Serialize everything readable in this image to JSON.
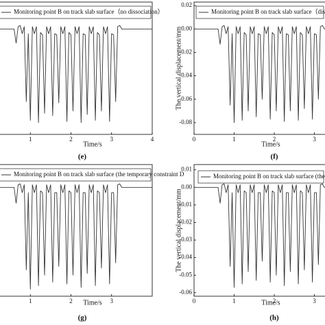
{
  "chart_data": [
    {
      "type": "line",
      "panel_label": "(e)",
      "x_label": "Time/s",
      "xlim": [
        0,
        4
      ],
      "xticks": [
        1,
        2,
        3,
        4
      ],
      "ylim": [
        -0.09,
        0.023
      ],
      "x": [
        0,
        0.05,
        0.1,
        0.15,
        0.2,
        0.25,
        0.3,
        0.35,
        0.4,
        0.45,
        0.5,
        0.55,
        0.6,
        0.65,
        0.7,
        0.75,
        0.8,
        0.85,
        0.9,
        0.95,
        1,
        1.05,
        1.1,
        1.15,
        1.2,
        1.25,
        1.3,
        1.35,
        1.4,
        1.45,
        1.5,
        1.55,
        1.6,
        1.65,
        1.7,
        1.75,
        1.8,
        1.85,
        1.9,
        1.95,
        2,
        2.05,
        2.1,
        2.15,
        2.2,
        2.25,
        2.3,
        2.35,
        2.4,
        2.45,
        2.5,
        2.55,
        2.6,
        2.65,
        2.7,
        2.75,
        2.8,
        2.85,
        2.9,
        2.95,
        3,
        3.05,
        3.1,
        3.15,
        3.2,
        3.25,
        3.3,
        3.35,
        3.4,
        3.45,
        3.5,
        3.55,
        3.6,
        3.65,
        3.7,
        3.75,
        3.8,
        3.85,
        3.9,
        3.95,
        4
      ],
      "series": [
        {
          "name": "Monitoring point B on track slab surface（no dissociation）",
          "color": "#333333",
          "values": [
            0,
            0,
            0,
            0,
            0,
            0,
            0,
            0,
            0,
            0,
            0,
            0,
            0,
            -0.012,
            0.002,
            0.003,
            -0.004,
            0.002,
            -0.062,
            -0.004,
            -0.078,
            0.002,
            -0.004,
            0.002,
            -0.08,
            -0.003,
            -0.005,
            -0.072,
            0.002,
            -0.004,
            0.002,
            -0.074,
            -0.004,
            -0.005,
            -0.063,
            0.002,
            -0.004,
            0.002,
            -0.079,
            -0.003,
            -0.005,
            -0.07,
            0.002,
            -0.004,
            0.002,
            -0.08,
            -0.004,
            -0.005,
            -0.073,
            0.002,
            -0.004,
            0.002,
            -0.078,
            -0.003,
            -0.005,
            -0.07,
            0.002,
            -0.004,
            0.002,
            -0.079,
            -0.004,
            -0.005,
            -0.062,
            0.002,
            0.003,
            0,
            0,
            0,
            0,
            0,
            0,
            0,
            0,
            0,
            0,
            0,
            0,
            0,
            0,
            0,
            0
          ]
        }
      ]
    },
    {
      "type": "line",
      "panel_label": "(f)",
      "x_label": "Time/s",
      "y_label": "The vertical displacement/mm",
      "xlim": [
        0,
        4
      ],
      "xticks": [
        0,
        1,
        2,
        3
      ],
      "ylim": [
        -0.09,
        0.023
      ],
      "yticks": [
        0.02,
        {
          "value": 0,
          "label": "0.00"
        },
        -0.02,
        -0.04,
        -0.06,
        -0.08
      ],
      "x": [
        0,
        0.05,
        0.1,
        0.15,
        0.2,
        0.25,
        0.3,
        0.35,
        0.4,
        0.45,
        0.5,
        0.55,
        0.6,
        0.65,
        0.7,
        0.75,
        0.8,
        0.85,
        0.9,
        0.95,
        1,
        1.05,
        1.1,
        1.15,
        1.2,
        1.25,
        1.3,
        1.35,
        1.4,
        1.45,
        1.5,
        1.55,
        1.6,
        1.65,
        1.7,
        1.75,
        1.8,
        1.85,
        1.9,
        1.95,
        2,
        2.05,
        2.1,
        2.15,
        2.2,
        2.25,
        2.3,
        2.35,
        2.4,
        2.45,
        2.5,
        2.55,
        2.6,
        2.65,
        2.7,
        2.75,
        2.8,
        2.85,
        2.9,
        2.95,
        3,
        3.05,
        3.1,
        3.15,
        3.2,
        3.25,
        3.3,
        3.35,
        3.4,
        3.45,
        3.5,
        3.55,
        3.6,
        3.65,
        3.7,
        3.75,
        3.8,
        3.85,
        3.9,
        3.95,
        4
      ],
      "series": [
        {
          "name": "Monitoring point B on track slab surface（disso",
          "color": "#333333",
          "values": [
            0,
            0,
            0,
            0,
            0,
            0,
            0,
            0,
            0,
            0,
            0,
            0,
            0,
            -0.013,
            0.002,
            0.003,
            -0.004,
            0.002,
            -0.065,
            -0.004,
            -0.08,
            0.002,
            -0.004,
            0.002,
            -0.078,
            -0.003,
            -0.005,
            -0.07,
            0.002,
            -0.004,
            0.002,
            -0.075,
            -0.004,
            -0.005,
            -0.06,
            0.002,
            -0.004,
            0.002,
            -0.077,
            -0.003,
            -0.005,
            -0.07,
            0.002,
            -0.004,
            0.002,
            -0.079,
            -0.004,
            -0.005,
            -0.07,
            0.002,
            -0.004,
            0.002,
            -0.078,
            -0.003,
            -0.005,
            -0.068,
            0.002,
            -0.004,
            0.002,
            -0.077,
            -0.004,
            -0.005,
            -0.06,
            0.002,
            0.003,
            0,
            0,
            0,
            0,
            0,
            0,
            0,
            0,
            0,
            0,
            0,
            0,
            0,
            0,
            0,
            0
          ]
        }
      ]
    },
    {
      "type": "line",
      "panel_label": "(g)",
      "x_label": "Time/s",
      "xlim": [
        0,
        4
      ],
      "xticks": [
        1,
        2,
        3
      ],
      "ylim": [
        -0.062,
        0.013
      ],
      "x": [
        0,
        0.05,
        0.1,
        0.15,
        0.2,
        0.25,
        0.3,
        0.35,
        0.4,
        0.45,
        0.5,
        0.55,
        0.6,
        0.65,
        0.7,
        0.75,
        0.8,
        0.85,
        0.9,
        0.95,
        1,
        1.05,
        1.1,
        1.15,
        1.2,
        1.25,
        1.3,
        1.35,
        1.4,
        1.45,
        1.5,
        1.55,
        1.6,
        1.65,
        1.7,
        1.75,
        1.8,
        1.85,
        1.9,
        1.95,
        2,
        2.05,
        2.1,
        2.15,
        2.2,
        2.25,
        2.3,
        2.35,
        2.4,
        2.45,
        2.5,
        2.55,
        2.6,
        2.65,
        2.7,
        2.75,
        2.8,
        2.85,
        2.9,
        2.95,
        3,
        3.05,
        3.1,
        3.15,
        3.2,
        3.25,
        3.3,
        3.35,
        3.4,
        3.45,
        3.5,
        3.55,
        3.6,
        3.65,
        3.7,
        3.75,
        3.8,
        3.85,
        3.9,
        3.95,
        4
      ],
      "series": [
        {
          "name": "Monitoring point B on track slab surface (the temporary constraint D",
          "color": "#333333",
          "values": [
            0,
            0,
            0,
            0,
            0,
            0,
            0,
            0,
            0,
            0,
            0,
            0,
            0,
            -0.009,
            0.0015,
            0.002,
            -0.003,
            0.0015,
            -0.047,
            -0.003,
            -0.058,
            0.0015,
            -0.003,
            0.0015,
            -0.056,
            -0.002,
            -0.003,
            -0.05,
            0.0015,
            -0.003,
            0.0015,
            -0.054,
            -0.003,
            -0.003,
            -0.045,
            0.0015,
            -0.003,
            0.0015,
            -0.055,
            -0.002,
            -0.003,
            -0.05,
            0.0015,
            -0.003,
            0.0015,
            -0.057,
            -0.003,
            -0.003,
            -0.049,
            0.0015,
            -0.003,
            0.0015,
            -0.056,
            -0.002,
            -0.003,
            -0.046,
            0.0015,
            -0.003,
            0.0015,
            -0.055,
            -0.003,
            -0.003,
            -0.043,
            0.0015,
            0.002,
            0,
            0,
            0,
            0,
            0,
            0,
            0,
            0,
            0,
            0,
            0,
            0,
            0,
            0,
            0,
            0
          ]
        }
      ]
    },
    {
      "type": "line",
      "panel_label": "(h)",
      "x_label": "Time/s",
      "y_label": "The vertical displacement/mm",
      "xlim": [
        0,
        4
      ],
      "xticks": [
        0,
        1,
        2,
        3
      ],
      "ylim": [
        -0.062,
        0.013
      ],
      "yticks": [
        0.01,
        {
          "value": 0,
          "label": "0.00"
        },
        -0.01,
        -0.02,
        -0.03,
        -0.04,
        -0.05,
        -0.06
      ],
      "x": [
        0,
        0.05,
        0.1,
        0.15,
        0.2,
        0.25,
        0.3,
        0.35,
        0.4,
        0.45,
        0.5,
        0.55,
        0.6,
        0.65,
        0.7,
        0.75,
        0.8,
        0.85,
        0.9,
        0.95,
        1,
        1.05,
        1.1,
        1.15,
        1.2,
        1.25,
        1.3,
        1.35,
        1.4,
        1.45,
        1.5,
        1.55,
        1.6,
        1.65,
        1.7,
        1.75,
        1.8,
        1.85,
        1.9,
        1.95,
        2,
        2.05,
        2.1,
        2.15,
        2.2,
        2.25,
        2.3,
        2.35,
        2.4,
        2.45,
        2.5,
        2.55,
        2.6,
        2.65,
        2.7,
        2.75,
        2.8,
        2.85,
        2.9,
        2.95,
        3,
        3.05,
        3.1,
        3.15,
        3.2,
        3.25,
        3.3,
        3.35,
        3.4,
        3.45,
        3.5,
        3.55,
        3.6,
        3.65,
        3.7,
        3.75,
        3.8,
        3.85,
        3.9,
        3.95,
        4
      ],
      "series": [
        {
          "name": "Monitoring point B on track slab surface (the temporary",
          "color": "#333333",
          "values": [
            0,
            0,
            0,
            0,
            0,
            0,
            0,
            0,
            0,
            0,
            0,
            0,
            0,
            -0.009,
            0.0015,
            0.002,
            -0.003,
            0.0015,
            -0.045,
            -0.003,
            -0.057,
            0.0015,
            -0.003,
            0.0015,
            -0.055,
            -0.002,
            -0.003,
            -0.048,
            0.0015,
            -0.003,
            0.0015,
            -0.053,
            -0.003,
            -0.003,
            -0.042,
            0.0015,
            -0.003,
            0.0015,
            -0.054,
            -0.002,
            -0.003,
            -0.05,
            0.0015,
            -0.003,
            0.0015,
            -0.056,
            -0.003,
            -0.003,
            -0.048,
            0.0015,
            -0.003,
            0.0015,
            -0.055,
            -0.002,
            -0.003,
            -0.047,
            0.0015,
            -0.003,
            0.0015,
            -0.054,
            -0.003,
            -0.003,
            -0.044,
            0.0015,
            0.002,
            0,
            0,
            0,
            0,
            0,
            0,
            0,
            0,
            0,
            0,
            0,
            0,
            0,
            0,
            0,
            0
          ]
        }
      ]
    }
  ]
}
